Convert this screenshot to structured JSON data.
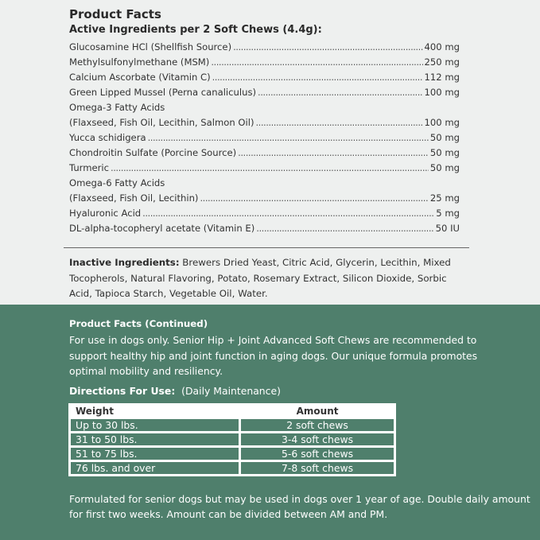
{
  "facts": {
    "title": "Product Facts",
    "subtitle": "Active Ingredients per 2 Soft Chews (4.4g):",
    "rows": [
      {
        "name": "Glucosamine HCl (Shellfish Source)",
        "value": "400 mg"
      },
      {
        "name": "Methylsulfonylmethane (MSM)",
        "value": "250 mg"
      },
      {
        "name": "Calcium Ascorbate (Vitamin C)",
        "value": "112 mg"
      },
      {
        "name": "Green Lipped Mussel (Perna canaliculus)",
        "value": "100 mg"
      },
      {
        "name": "Omega-3 Fatty Acids",
        "value": ""
      },
      {
        "name": "(Flaxseed, Fish Oil, Lecithin, Salmon Oil)",
        "value": "100 mg"
      },
      {
        "name": "Yucca schidigera",
        "value": "50 mg"
      },
      {
        "name": "Chondroitin Sulfate (Porcine Source)",
        "value": "50 mg"
      },
      {
        "name": "Turmeric",
        "value": "50 mg"
      },
      {
        "name": "Omega-6 Fatty Acids",
        "value": ""
      },
      {
        "name": "(Flaxseed, Fish Oil, Lecithin)",
        "value": "25 mg"
      },
      {
        "name": "Hyaluronic Acid",
        "value": "5 mg"
      },
      {
        "name": "DL-alpha-tocopheryl acetate (Vitamin E)",
        "value": "50 IU"
      }
    ],
    "inactive_label": "Inactive Ingredients:",
    "inactive_text": " Brewers Dried Yeast, Citric Acid, Glycerin, Lecithin, Mixed Tocopherols, Natural Flavoring, Potato, Rosemary Extract, Silicon Dioxide, Sorbic Acid, Tapioca Starch, Vegetable Oil, Water."
  },
  "continued": {
    "title": "Product Facts (Continued)",
    "text": "For use in dogs only. Senior Hip + Joint Advanced Soft Chews are recommended to support healthy hip and joint function in aging dogs. Our unique formula promotes optimal mobility and resiliency.",
    "directions_label": "Directions For Use:",
    "directions_note": "(Daily Maintenance)",
    "table": {
      "headers": [
        "Weight",
        "Amount"
      ],
      "rows": [
        [
          "Up to 30 lbs.",
          "2 soft chews"
        ],
        [
          "31 to 50 lbs.",
          "3-4 soft chews"
        ],
        [
          "51 to 75 lbs.",
          "5-6 soft chews"
        ],
        [
          "76 lbs. and over",
          "7-8 soft chews"
        ]
      ]
    },
    "footer": "Formulated for senior dogs but may be used in dogs over 1 year of age. Double daily amount for first two weeks. Amount can be divided between AM and PM."
  },
  "colors": {
    "background": "#eef0ef",
    "green": "#4f7f6c"
  }
}
